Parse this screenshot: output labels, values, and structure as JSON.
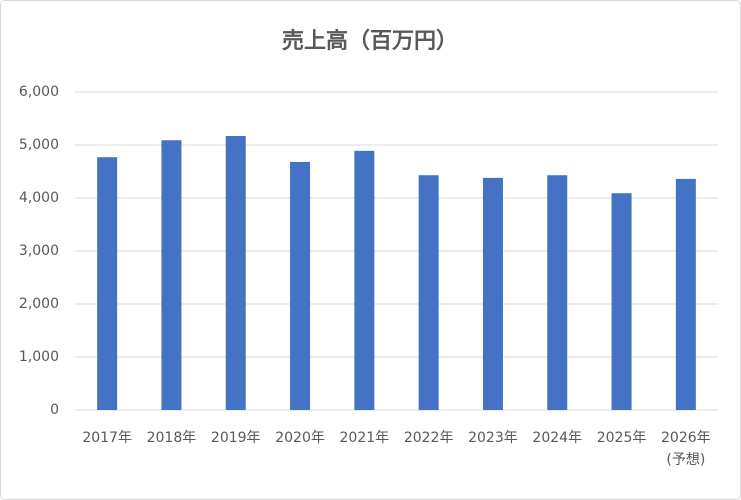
{
  "chart_data": {
    "type": "bar",
    "title": "売上高（百万円）",
    "categories": [
      "2017年",
      "2018年",
      "2019年",
      "2020年",
      "2021年",
      "2022年",
      "2023年",
      "2024年",
      "2025年",
      "2026年\n(予想)"
    ],
    "values": [
      4770,
      5090,
      5170,
      4680,
      4890,
      4430,
      4380,
      4430,
      4090,
      4360
    ],
    "color": "#4472c4",
    "ylim": [
      0,
      6000
    ],
    "yticks": [
      0,
      {
        "value": 1000,
        "label": "1,000"
      },
      {
        "value": 2000,
        "label": "2,000"
      },
      {
        "value": 3000,
        "label": "3,000"
      },
      {
        "value": 4000,
        "label": "4,000"
      },
      {
        "value": 5000,
        "label": "5,000"
      },
      {
        "value": 6000,
        "label": "6,000"
      }
    ],
    "grid": true
  }
}
